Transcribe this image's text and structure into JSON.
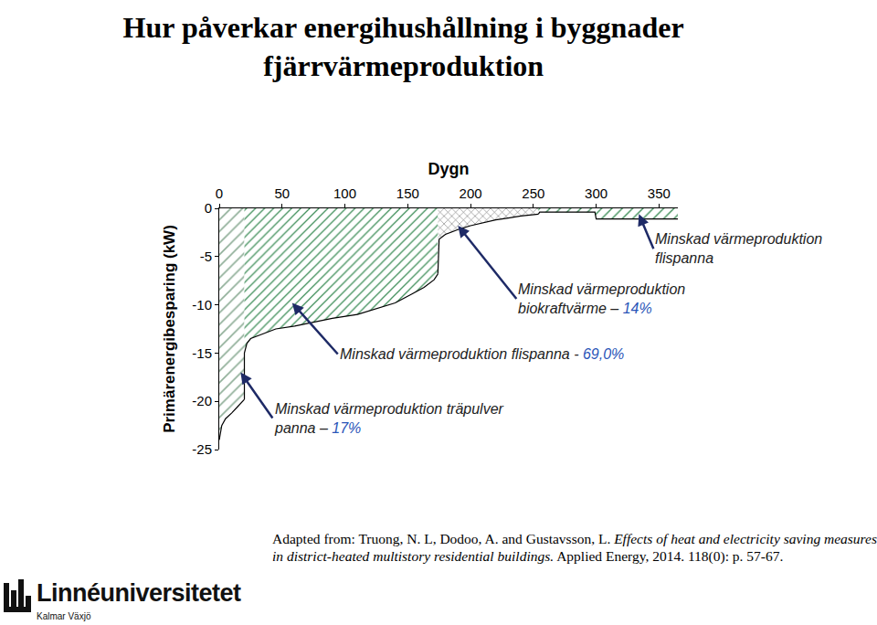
{
  "chart_data": {
    "type": "area",
    "title": "Hur påverkar energihushållning i byggnader\nfjärrvärmeproduktion",
    "x_label": "Dygn",
    "y_label": "Primärenergibesparing (kW)",
    "xlim": [
      0,
      365
    ],
    "xticks": [
      0,
      50,
      100,
      150,
      200,
      250,
      300,
      350
    ],
    "ylim": [
      -25,
      0
    ],
    "yticks": [
      -25,
      -20,
      -15,
      -10,
      -5,
      0
    ],
    "grid": false,
    "series": [
      {
        "annotation": "Minskad värmeproduktion träpulver\npanna – 17%",
        "color": "#8fae98",
        "x": [
          0,
          2,
          5,
          10,
          15,
          19,
          20
        ],
        "values": [
          -24,
          -22.5,
          -21.8,
          -21.2,
          -20.5,
          -20,
          -19.8
        ]
      },
      {
        "annotation": "Minskad värmeproduktion flispanna - 69,0%",
        "color": "#3f8f5a",
        "x": [
          20,
          20,
          22,
          25,
          35,
          45,
          60,
          75,
          90,
          110,
          125,
          140,
          153,
          163,
          171,
          174
        ],
        "values": [
          -19.8,
          -15,
          -14,
          -13.5,
          -13,
          -12.5,
          -12.2,
          -11.8,
          -11.4,
          -11,
          -10.4,
          -9.8,
          -8.9,
          -8.2,
          -7.4,
          -6.8
        ]
      },
      {
        "annotation": "Minskad värmeproduktion\nbiokraftvärme – 14%",
        "color": "#707070",
        "x": [
          174,
          175,
          180,
          190,
          200,
          210,
          220,
          230,
          240,
          254
        ],
        "values": [
          -6.8,
          -3.2,
          -2.7,
          -2.2,
          -1.8,
          -1.5,
          -1.2,
          -1,
          -0.8,
          -0.6
        ]
      },
      {
        "annotation": "Minskad värmeproduktion\nflispanna",
        "color": "#3f8f5a",
        "x": [
          254,
          255,
          270,
          290,
          299,
          300,
          320,
          340,
          365
        ],
        "values": [
          -0.6,
          -0.4,
          -0.4,
          -0.4,
          -0.4,
          -1.1,
          -1.1,
          -1.1,
          -1.1
        ]
      }
    ]
  },
  "source": {
    "prefix": "Adapted from: Truong, N. L, Dodoo, A. and Gustavsson, L. ",
    "italic": "Effects of heat and electricity saving measures in district-heated multistory residential buildings.",
    "suffix": " Applied Energy, 2014. 118(0): p. 57-67."
  },
  "logo": {
    "name": "Linnéuniversitetet",
    "sub": "Kalmar Växjö"
  }
}
